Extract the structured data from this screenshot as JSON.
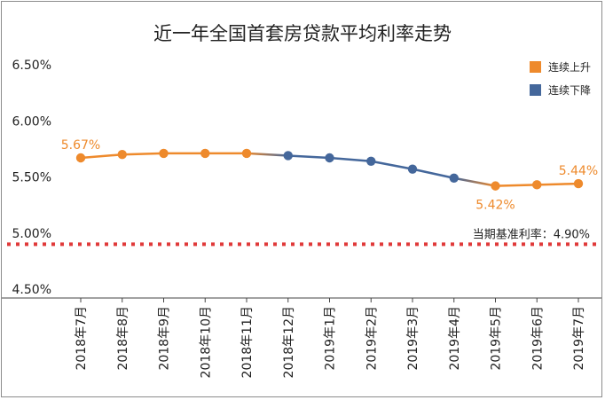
{
  "chart_data": {
    "type": "line",
    "title": "近一年全国首套房贷款平均利率走势",
    "categories": [
      "2018年7月",
      "2018年8月",
      "2018年9月",
      "2018年10月",
      "2018年11月",
      "2018年12月",
      "2019年1月",
      "2019年2月",
      "2019年3月",
      "2019年4月",
      "2019年5月",
      "2019年6月",
      "2019年7月"
    ],
    "values": [
      5.67,
      5.7,
      5.71,
      5.71,
      5.71,
      5.69,
      5.67,
      5.64,
      5.57,
      5.49,
      5.42,
      5.43,
      5.44
    ],
    "trend": [
      "up",
      "up",
      "up",
      "up",
      "up",
      "down",
      "down",
      "down",
      "down",
      "down",
      "up",
      "up",
      "up"
    ],
    "ylim": [
      4.5,
      6.5
    ],
    "yticks": [
      "4.50%",
      "5.00%",
      "5.50%",
      "6.00%",
      "6.50%"
    ],
    "ytick_values": [
      4.5,
      5.0,
      5.5,
      6.0,
      6.5
    ],
    "legend": [
      {
        "label": "连续上升",
        "color": "#ee8a2c"
      },
      {
        "label": "连续下降",
        "color": "#44679b"
      }
    ],
    "legend_position": "top-right",
    "data_labels": [
      {
        "index": 0,
        "text": "5.67%",
        "position": "above"
      },
      {
        "index": 10,
        "text": "5.42%",
        "position": "below"
      },
      {
        "index": 12,
        "text": "5.44%",
        "position": "above"
      }
    ],
    "reference_line": {
      "value": 4.9,
      "label": "当期基准利率：4.90%",
      "color": "#e03a3a",
      "style": "dotted"
    },
    "colors": {
      "up": "#ee8a2c",
      "down": "#44679b",
      "axis": "#444444"
    },
    "grid": false
  }
}
